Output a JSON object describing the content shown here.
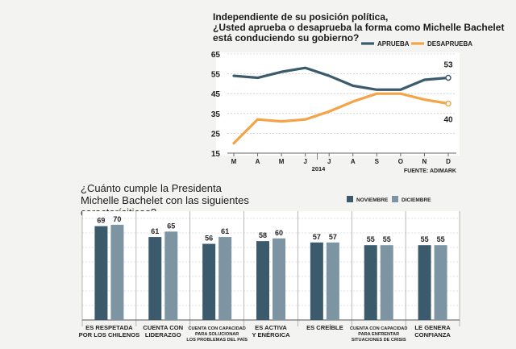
{
  "chart_data": [
    {
      "type": "line",
      "title_lines": [
        "Independiente de su posición política,",
        "¿Usted aprueba o desaprueba la forma como Michelle Bachelet",
        "está conduciendo su gobierno?"
      ],
      "categories": [
        "M",
        "A",
        "M",
        "J",
        "J",
        "A",
        "S",
        "O",
        "N",
        "D"
      ],
      "year_label": "2014",
      "source": "FUENTE: ADIMARK",
      "ylim": [
        15,
        65
      ],
      "yticks": [
        "65",
        "55",
        "45",
        "35",
        "25",
        "15"
      ],
      "series": [
        {
          "name": "APRUEBA",
          "color": "#3b5a6c",
          "values": [
            54,
            53,
            56,
            58,
            54,
            49,
            47,
            47,
            52,
            53
          ],
          "end_label": "53"
        },
        {
          "name": "DESAPRUEBA",
          "color": "#f4a347",
          "values": [
            20,
            32,
            31,
            32,
            36,
            41,
            45,
            45,
            42,
            40
          ],
          "end_label": "40"
        }
      ]
    },
    {
      "type": "bar",
      "title_lines": [
        "¿Cuánto cumple la Presidenta",
        "Michelle Bachelet con las siguientes caracterísiticas?"
      ],
      "ylim": [
        0,
        80
      ],
      "series": [
        {
          "name": "NOVIEMBRE",
          "color": "#3b5a6c",
          "values": [
            69,
            61,
            56,
            58,
            57,
            55,
            55
          ]
        },
        {
          "name": "DICIEMBRE",
          "color": "#7d95a3",
          "values": [
            70,
            65,
            61,
            60,
            57,
            55,
            55
          ]
        }
      ],
      "categories": [
        {
          "lines": [
            "ES RESPETADA",
            "POR LOS CHILENOS"
          ],
          "small": false
        },
        {
          "lines": [
            "CUENTA CON",
            "LIDERAZGO"
          ],
          "small": false
        },
        {
          "lines": [
            "CUENTA CON CAPACIDAD",
            "PARA SOLUCIONAR",
            "LOS PROBLEMAS DEL PAÍS"
          ],
          "small": true
        },
        {
          "lines": [
            "ES ACTIVA",
            "Y ENÉRGICA"
          ],
          "small": false
        },
        {
          "lines": [
            "ES CREÍBLE"
          ],
          "small": false
        },
        {
          "lines": [
            "CUENTA CON CAPACIDAD",
            "PARA ENFRENTAR",
            "SITUACIONES DE CRISIS"
          ],
          "small": true
        },
        {
          "lines": [
            "LE GENERA",
            "CONFIANZA"
          ],
          "small": false
        }
      ]
    }
  ]
}
